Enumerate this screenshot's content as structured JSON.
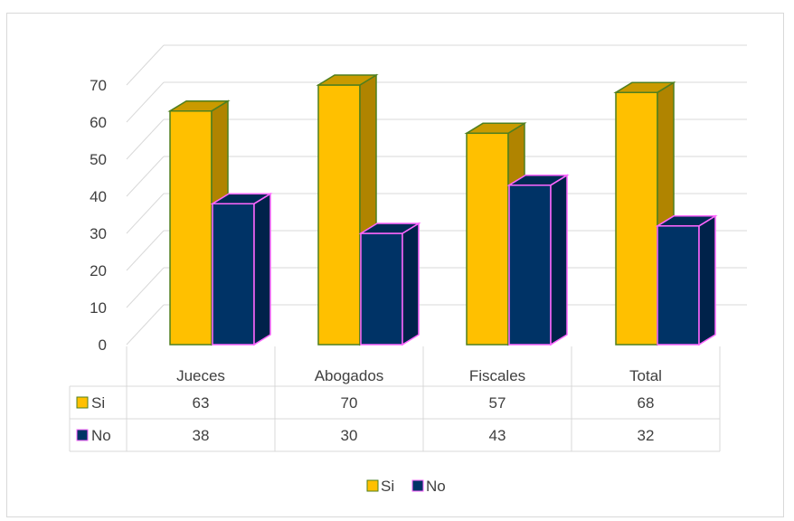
{
  "chart_data": {
    "type": "bar",
    "style": "3d-clustered-column-with-data-table",
    "categories": [
      "Jueces",
      "Abogados",
      "Fiscales",
      "Total"
    ],
    "series": [
      {
        "name": "Si",
        "values": [
          63,
          70,
          57,
          68
        ],
        "color": "#ffc000",
        "border": "#4f7f1f",
        "side": "#b08400",
        "top": "#c99a00"
      },
      {
        "name": "No",
        "values": [
          38,
          30,
          43,
          32
        ],
        "color": "#003366",
        "border": "#ff66ff",
        "side": "#00224a",
        "top": "#002a55"
      }
    ],
    "yticks": [
      "0",
      "10",
      "20",
      "30",
      "40",
      "50",
      "60",
      "70"
    ],
    "ylim": [
      0,
      80
    ],
    "grid": true,
    "legend_position": "bottom",
    "data_table": true
  }
}
